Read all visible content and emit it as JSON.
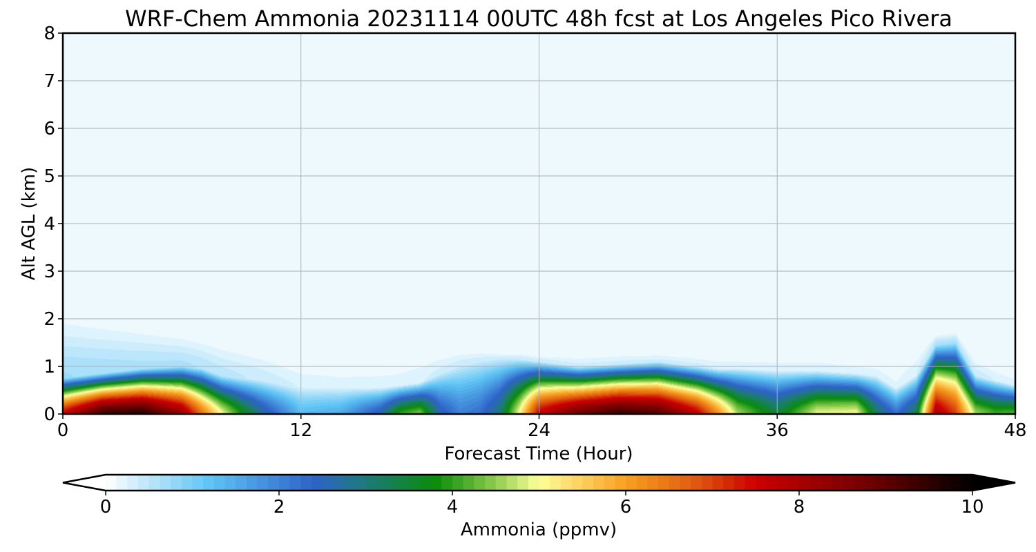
{
  "chart_data": {
    "type": "heatmap",
    "title": "WRF-Chem Ammonia  20231114 00UTC 48h fcst at Los Angeles Pico Rivera",
    "xlabel": "Forecast Time (Hour)",
    "ylabel": "Alt AGL (km)",
    "xlim": [
      0,
      48
    ],
    "ylim": [
      0,
      8
    ],
    "xticks": [
      0,
      12,
      24,
      36,
      48
    ],
    "yticks": [
      0,
      1,
      2,
      3,
      4,
      5,
      6,
      7,
      8
    ],
    "grid": true,
    "colorbar": {
      "label": "Ammonia  (ppmv)",
      "min": 0,
      "max": 10,
      "ticks": [
        0,
        2,
        4,
        6,
        8,
        10
      ],
      "extend": "both",
      "stops": [
        {
          "v": 0,
          "color": "#ffffff"
        },
        {
          "v": 1.2,
          "color": "#5ec4f5"
        },
        {
          "v": 2.4,
          "color": "#2e62c8"
        },
        {
          "v": 3.0,
          "color": "#1e7a7a"
        },
        {
          "v": 3.8,
          "color": "#0a8c0a"
        },
        {
          "v": 4.5,
          "color": "#90cc50"
        },
        {
          "v": 5.0,
          "color": "#ffff9a"
        },
        {
          "v": 6.0,
          "color": "#f8a020"
        },
        {
          "v": 6.8,
          "color": "#e05a10"
        },
        {
          "v": 7.5,
          "color": "#cc0000"
        },
        {
          "v": 8.8,
          "color": "#700000"
        },
        {
          "v": 10,
          "color": "#000000"
        }
      ]
    },
    "profile": {
      "hours": [
        0,
        2,
        4,
        6,
        7,
        8,
        9,
        10,
        12,
        14,
        16,
        17,
        18,
        19,
        20,
        21,
        22,
        23,
        24,
        26,
        28,
        30,
        32,
        33,
        34,
        36,
        38,
        40,
        41,
        42,
        43,
        44,
        45,
        46,
        47,
        48
      ],
      "surface_ppmv": [
        7.5,
        9.4,
        9.6,
        8.2,
        6.5,
        5.0,
        3.8,
        2.8,
        1.3,
        1.5,
        2.6,
        4.0,
        4.4,
        2.6,
        2.0,
        2.2,
        3.0,
        5.0,
        7.6,
        8.8,
        9.4,
        9.1,
        7.6,
        6.2,
        4.6,
        3.4,
        4.9,
        5.0,
        3.2,
        2.2,
        3.3,
        8.0,
        7.0,
        4.6,
        4.1,
        4.2
      ],
      "depth_km": [
        0.75,
        0.85,
        0.95,
        1.0,
        0.95,
        0.8,
        0.75,
        0.7,
        0.55,
        0.55,
        0.55,
        0.6,
        0.65,
        0.85,
        1.0,
        1.1,
        1.15,
        1.15,
        1.1,
        1.0,
        1.05,
        1.1,
        1.0,
        0.95,
        0.95,
        0.9,
        0.9,
        0.85,
        0.8,
        0.55,
        0.8,
        1.45,
        1.5,
        0.8,
        0.7,
        0.6
      ],
      "residual_top_km": [
        2.2,
        2.05,
        1.9,
        1.75,
        1.65,
        1.55,
        1.45,
        1.35,
        1.05,
        1.0,
        1.05,
        1.1,
        1.2,
        1.3,
        1.35,
        1.35,
        1.3,
        1.3,
        1.25,
        1.25,
        1.3,
        1.3,
        1.25,
        1.2,
        1.2,
        1.2,
        1.2,
        1.15,
        1.1,
        1.0,
        1.3,
        1.7,
        1.75,
        1.2,
        1.0,
        0.85
      ],
      "residual_ppmv": [
        0.7,
        0.65,
        0.6,
        0.6,
        0.55,
        0.5,
        0.45,
        0.4,
        0.3,
        0.25,
        0.25,
        0.25,
        0.3,
        0.35,
        0.4,
        0.4,
        0.4,
        0.4,
        0.4,
        0.35,
        0.35,
        0.35,
        0.35,
        0.3,
        0.3,
        0.3,
        0.3,
        0.25,
        0.25,
        0.2,
        0.3,
        0.6,
        0.6,
        0.4,
        0.3,
        0.25
      ],
      "background_ppmv": 0.12
    }
  }
}
